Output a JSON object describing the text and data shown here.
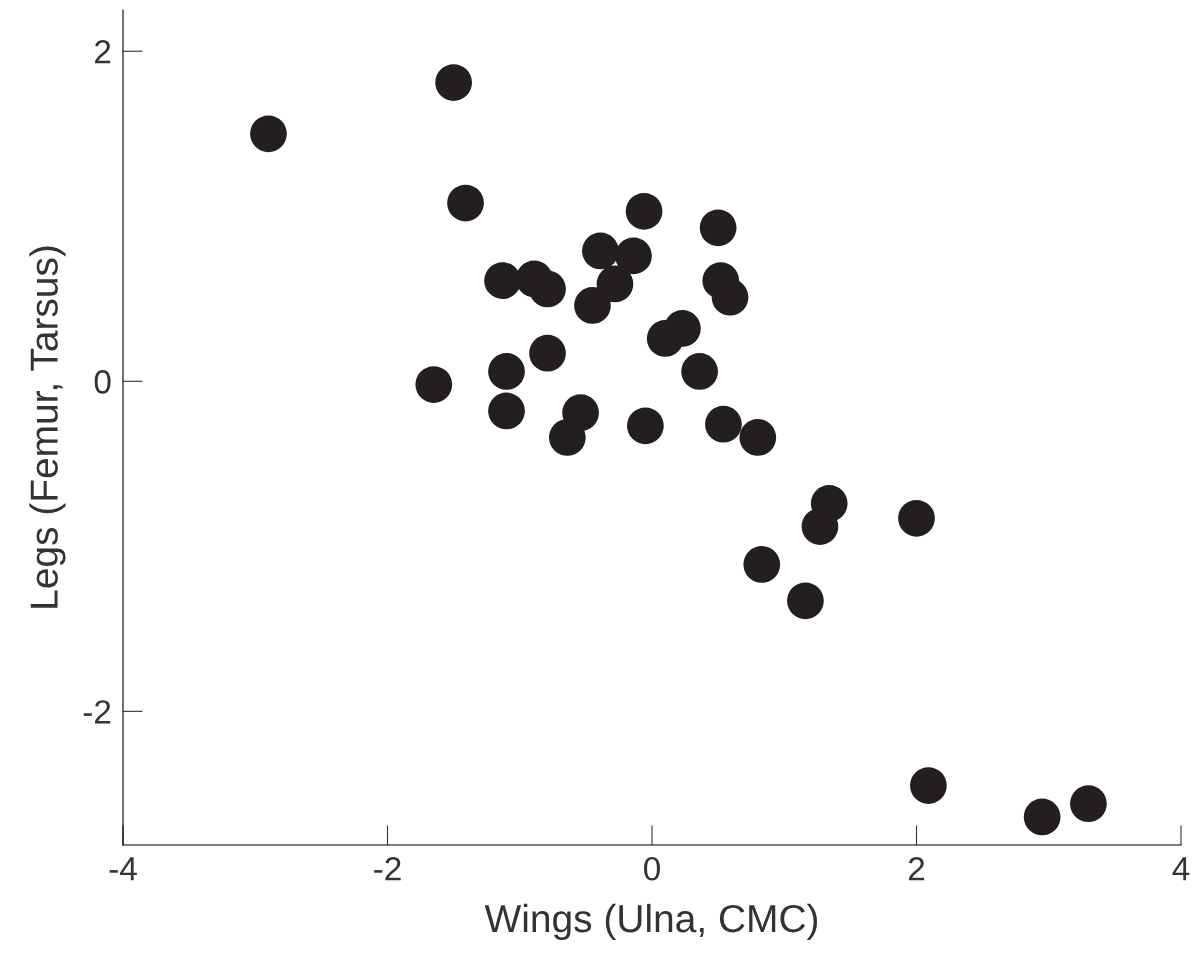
{
  "chart_data": {
    "type": "scatter",
    "xlabel": "Wings (Ulna, CMC)",
    "ylabel": "Legs (Femur, Tarsus)",
    "xlim": [
      -4,
      4
    ],
    "ylim": [
      -2.81,
      2.25
    ],
    "xticks": [
      -4,
      -2,
      0,
      2,
      4
    ],
    "yticks": [
      -2,
      0,
      2
    ],
    "grid": false,
    "marker": "circle",
    "series": [
      {
        "color": "#231f20",
        "x": [
          -2.9,
          -1.5,
          -1.41,
          -0.06,
          0.5,
          -0.39,
          -0.14,
          -1.13,
          -0.89,
          -0.79,
          -0.28,
          0.52,
          0.59,
          -0.45,
          0.23,
          0.1,
          -0.79,
          -1.1,
          0.36,
          -1.65,
          -1.1,
          -0.54,
          -0.64,
          -0.05,
          0.54,
          0.8,
          1.34,
          1.27,
          2.0,
          0.83,
          1.16,
          2.09,
          2.95,
          3.3
        ],
        "values": [
          1.5,
          1.81,
          1.08,
          1.03,
          0.93,
          0.79,
          0.76,
          0.61,
          0.62,
          0.56,
          0.59,
          0.61,
          0.51,
          0.46,
          0.32,
          0.26,
          0.17,
          0.06,
          0.06,
          -0.02,
          -0.18,
          -0.19,
          -0.34,
          -0.27,
          -0.26,
          -0.34,
          -0.74,
          -0.88,
          -0.83,
          -1.11,
          -1.33,
          -2.45,
          -2.64,
          -2.56
        ]
      }
    ]
  }
}
